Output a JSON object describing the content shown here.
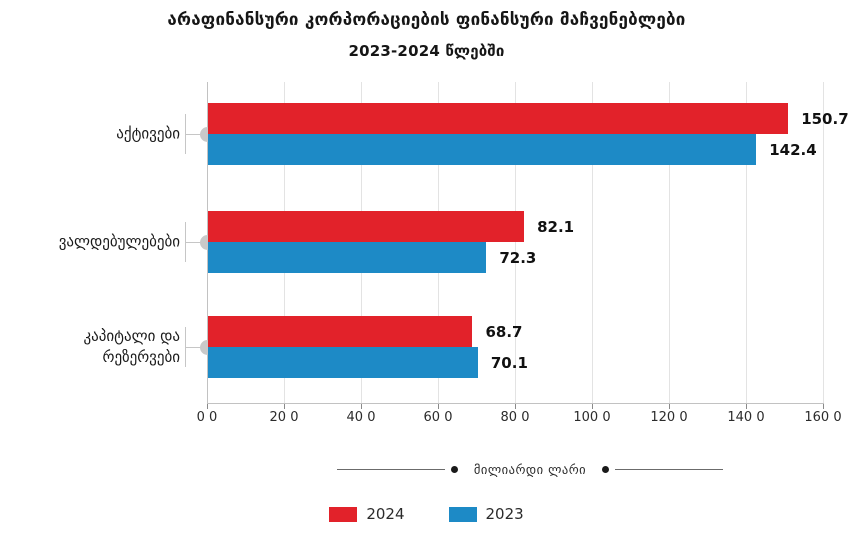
{
  "title": "არაფინანსური კორპორაციების ფინანსური მაჩვენებლები",
  "subtitle": "2023-2024 წლებში",
  "unit_label": "მილიარდი ლარი",
  "colors": {
    "series_2024_red": "#e2222a",
    "series_2023_blue": "#1d8ac6",
    "category_marker_gray": "#c9c9c9",
    "gridline": "#e3e3e3"
  },
  "chart_data": {
    "type": "bar",
    "orientation": "horizontal",
    "title": "არაფინანსური კორპორაციების ფინანსური მაჩვენებლები",
    "subtitle": "2023-2024 წლებში",
    "xlabel": "მილიარდი ლარი",
    "categories": [
      "აქტივები",
      "ვალდებულებები",
      "კაპიტალი და რეზერვები"
    ],
    "category_lines": [
      [
        "აქტივები"
      ],
      [
        "ვალდებულებები"
      ],
      [
        "კაპიტალი და",
        "რეზერვები"
      ]
    ],
    "series": [
      {
        "name": "2024",
        "color": "#e2222a",
        "values": [
          150.7,
          82.1,
          68.7
        ],
        "value_labels": [
          "150.7",
          "82.1",
          "68.7"
        ]
      },
      {
        "name": "2023",
        "color": "#1d8ac6",
        "values": [
          142.4,
          72.3,
          70.1
        ],
        "value_labels": [
          "142.4",
          "72.3",
          "70.1"
        ]
      }
    ],
    "x_axis": {
      "min": 0,
      "max": 160,
      "tick_values": [
        0,
        20,
        40,
        60,
        80,
        100,
        120,
        140,
        160
      ],
      "tick_labels": [
        "0 0",
        "20 0",
        "40 0",
        "60 0",
        "80 0",
        "100 0",
        "120 0",
        "140 0",
        "160 0"
      ]
    },
    "grid": true,
    "legend_position": "bottom"
  }
}
